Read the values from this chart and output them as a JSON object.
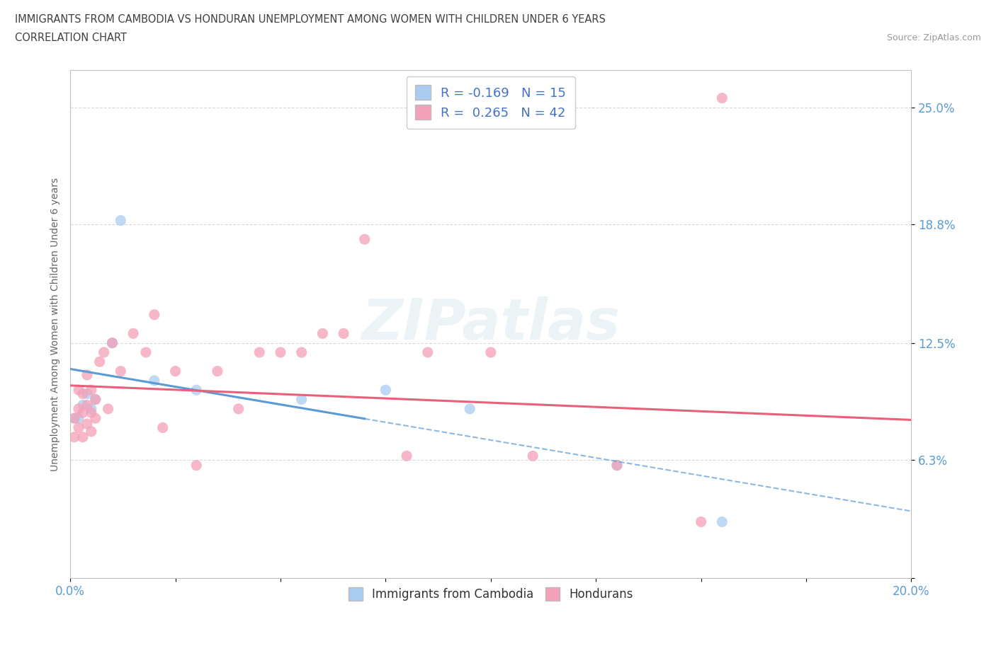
{
  "title_line1": "IMMIGRANTS FROM CAMBODIA VS HONDURAN UNEMPLOYMENT AMONG WOMEN WITH CHILDREN UNDER 6 YEARS",
  "title_line2": "CORRELATION CHART",
  "source": "Source: ZipAtlas.com",
  "ylabel": "Unemployment Among Women with Children Under 6 years",
  "xlim": [
    0.0,
    0.2
  ],
  "ylim": [
    0.0,
    0.27
  ],
  "yticks": [
    0.0,
    0.063,
    0.125,
    0.188,
    0.25
  ],
  "ytick_labels": [
    "",
    "6.3%",
    "12.5%",
    "18.8%",
    "25.0%"
  ],
  "xticks": [
    0.0,
    0.025,
    0.05,
    0.075,
    0.1,
    0.125,
    0.15,
    0.175,
    0.2
  ],
  "xtick_labels": [
    "0.0%",
    "",
    "",
    "",
    "",
    "",
    "",
    "",
    "20.0%"
  ],
  "watermark": "ZIPatlas",
  "cambodia_color": "#aaccf0",
  "honduran_color": "#f4a0b8",
  "trendline_blue": "#5b9bd5",
  "trendline_pink": "#e8607a",
  "cambodia_r": -0.169,
  "cambodia_n": 15,
  "honduran_r": 0.265,
  "honduran_n": 42,
  "cambodia_points": [
    [
      0.001,
      0.085
    ],
    [
      0.002,
      0.085
    ],
    [
      0.003,
      0.092
    ],
    [
      0.004,
      0.098
    ],
    [
      0.005,
      0.09
    ],
    [
      0.006,
      0.095
    ],
    [
      0.01,
      0.125
    ],
    [
      0.012,
      0.19
    ],
    [
      0.02,
      0.105
    ],
    [
      0.03,
      0.1
    ],
    [
      0.055,
      0.095
    ],
    [
      0.075,
      0.1
    ],
    [
      0.095,
      0.09
    ],
    [
      0.13,
      0.06
    ],
    [
      0.155,
      0.03
    ]
  ],
  "honduran_points": [
    [
      0.001,
      0.075
    ],
    [
      0.001,
      0.085
    ],
    [
      0.002,
      0.08
    ],
    [
      0.002,
      0.09
    ],
    [
      0.002,
      0.1
    ],
    [
      0.003,
      0.075
    ],
    [
      0.003,
      0.088
    ],
    [
      0.003,
      0.098
    ],
    [
      0.004,
      0.082
    ],
    [
      0.004,
      0.092
    ],
    [
      0.004,
      0.108
    ],
    [
      0.005,
      0.078
    ],
    [
      0.005,
      0.088
    ],
    [
      0.005,
      0.1
    ],
    [
      0.006,
      0.085
    ],
    [
      0.006,
      0.095
    ],
    [
      0.007,
      0.115
    ],
    [
      0.008,
      0.12
    ],
    [
      0.009,
      0.09
    ],
    [
      0.01,
      0.125
    ],
    [
      0.012,
      0.11
    ],
    [
      0.015,
      0.13
    ],
    [
      0.018,
      0.12
    ],
    [
      0.02,
      0.14
    ],
    [
      0.022,
      0.08
    ],
    [
      0.025,
      0.11
    ],
    [
      0.03,
      0.06
    ],
    [
      0.035,
      0.11
    ],
    [
      0.04,
      0.09
    ],
    [
      0.045,
      0.12
    ],
    [
      0.05,
      0.12
    ],
    [
      0.055,
      0.12
    ],
    [
      0.06,
      0.13
    ],
    [
      0.065,
      0.13
    ],
    [
      0.07,
      0.18
    ],
    [
      0.08,
      0.065
    ],
    [
      0.085,
      0.12
    ],
    [
      0.1,
      0.12
    ],
    [
      0.11,
      0.065
    ],
    [
      0.13,
      0.06
    ],
    [
      0.15,
      0.03
    ],
    [
      0.155,
      0.255
    ]
  ],
  "background_color": "#ffffff",
  "grid_color": "#d8d8d8",
  "title_color": "#404040",
  "tick_label_color": "#5b9bd5",
  "ylabel_color": "#666666"
}
